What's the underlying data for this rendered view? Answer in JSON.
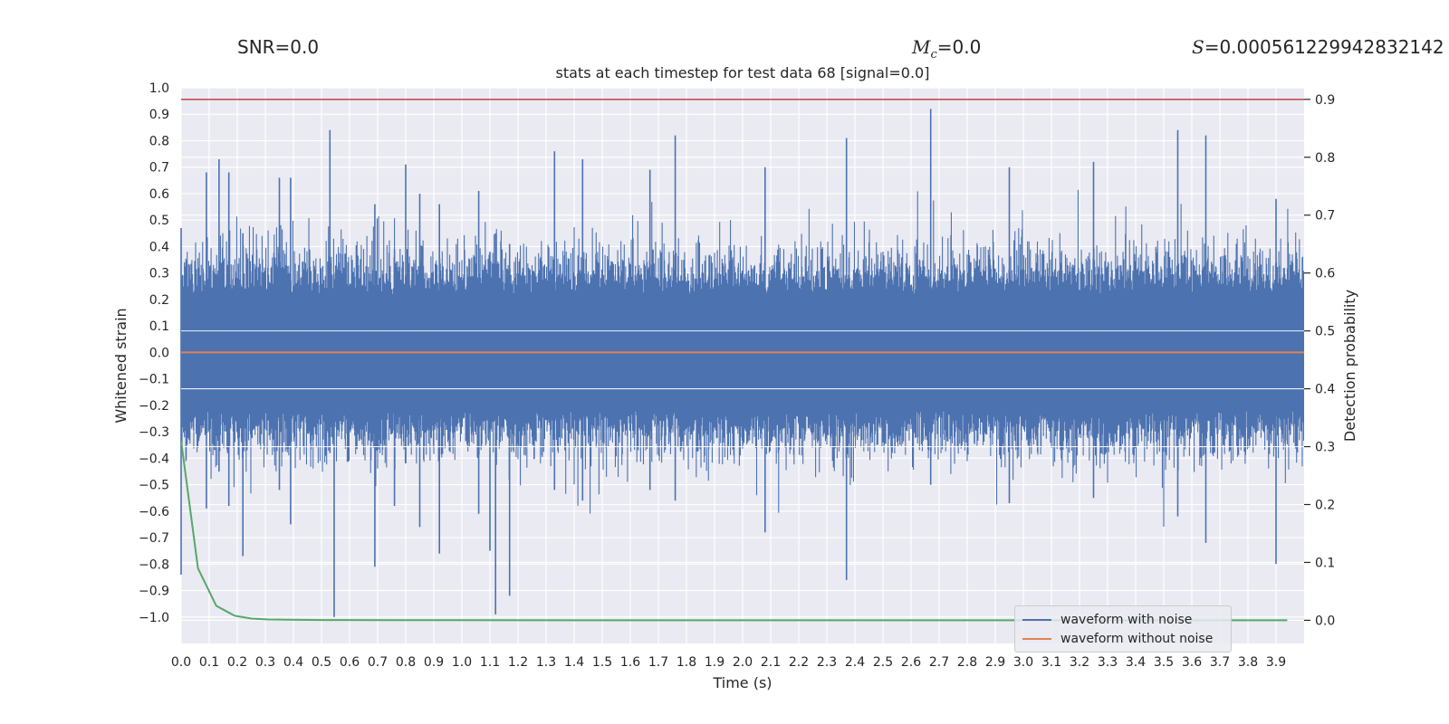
{
  "header": {
    "snr_text": "SNR=0.0",
    "mc_symbol": "M",
    "mc_sub": "c",
    "mc_value": "=0.0",
    "s_symbol": "S",
    "s_value": "=0.000561229942832142"
  },
  "chart_data": {
    "type": "line",
    "title": "stats at each timestep for test data 68 [signal=0.0]",
    "xlabel": "Time (s)",
    "ylabel": "Whitened strain",
    "y2label": "Detection probability",
    "xlim": [
      0.0,
      4.0
    ],
    "ylim": [
      -1.1,
      1.0
    ],
    "y2lim": [
      -0.04,
      0.92
    ],
    "xticks": [
      "0.0",
      "0.1",
      "0.2",
      "0.3",
      "0.4",
      "0.5",
      "0.6",
      "0.7",
      "0.8",
      "0.9",
      "1.0",
      "1.1",
      "1.2",
      "1.3",
      "1.4",
      "1.5",
      "1.6",
      "1.7",
      "1.8",
      "1.9",
      "2.0",
      "2.1",
      "2.2",
      "2.3",
      "2.4",
      "2.5",
      "2.6",
      "2.7",
      "2.8",
      "2.9",
      "3.0",
      "3.1",
      "3.2",
      "3.3",
      "3.4",
      "3.5",
      "3.6",
      "3.7",
      "3.8",
      "3.9"
    ],
    "yticks": [
      "1.0",
      "0.9",
      "0.8",
      "0.7",
      "0.6",
      "0.5",
      "0.4",
      "0.3",
      "0.2",
      "0.1",
      "0.0",
      "−0.1",
      "−0.2",
      "−0.3",
      "−0.4",
      "−0.5",
      "−0.6",
      "−0.7",
      "−0.8",
      "−0.9",
      "−1.0"
    ],
    "y2ticks": [
      "0.9",
      "0.8",
      "0.7",
      "0.6",
      "0.5",
      "0.4",
      "0.3",
      "0.2",
      "0.1",
      "0.0"
    ],
    "threshold": 0.9,
    "series": [
      {
        "name": "waveform with noise",
        "color": "#4c72b0",
        "note": "dense noise, envelope roughly ±0.5 with spikes to ±1.0"
      },
      {
        "name": "waveform without noise",
        "color": "#dd8452",
        "value": 0.0
      },
      {
        "name": "detection probability",
        "color": "#55a868",
        "x": [
          0.0,
          0.06,
          0.125,
          0.19,
          0.25,
          0.31,
          0.375,
          0.5,
          0.75,
          1.0,
          1.5,
          2.0,
          2.5,
          3.0,
          3.5,
          3.94
        ],
        "values": [
          0.31,
          0.09,
          0.025,
          0.008,
          0.003,
          0.0015,
          0.001,
          0.0005,
          0.0003,
          0.0002,
          0.0001,
          0.0001,
          0.0001,
          0.0001,
          0.0001,
          0.0001
        ]
      }
    ],
    "spikes": [
      {
        "x": 0.0,
        "hi": 0.47,
        "lo": -0.84
      },
      {
        "x": 0.09,
        "hi": 0.68,
        "lo": -0.59
      },
      {
        "x": 0.135,
        "hi": 0.73,
        "lo": -0.45
      },
      {
        "x": 0.17,
        "hi": 0.68,
        "lo": -0.58
      },
      {
        "x": 0.22,
        "hi": 0.45,
        "lo": -0.77
      },
      {
        "x": 0.35,
        "hi": 0.66,
        "lo": -0.52
      },
      {
        "x": 0.39,
        "hi": 0.66,
        "lo": -0.65
      },
      {
        "x": 0.53,
        "hi": 0.84,
        "lo": -0.38
      },
      {
        "x": 0.545,
        "hi": 0.2,
        "lo": -1.0
      },
      {
        "x": 0.69,
        "hi": 0.56,
        "lo": -0.81
      },
      {
        "x": 0.76,
        "hi": 0.39,
        "lo": -0.58
      },
      {
        "x": 0.8,
        "hi": 0.71,
        "lo": -0.42
      },
      {
        "x": 0.85,
        "hi": 0.6,
        "lo": -0.66
      },
      {
        "x": 0.92,
        "hi": 0.56,
        "lo": -0.76
      },
      {
        "x": 1.06,
        "hi": 0.61,
        "lo": -0.61
      },
      {
        "x": 1.1,
        "hi": 0.38,
        "lo": -0.75
      },
      {
        "x": 1.12,
        "hi": 0.45,
        "lo": -0.99
      },
      {
        "x": 1.17,
        "hi": 0.41,
        "lo": -0.92
      },
      {
        "x": 1.33,
        "hi": 0.76,
        "lo": -0.52
      },
      {
        "x": 1.43,
        "hi": 0.73,
        "lo": -0.56
      },
      {
        "x": 1.67,
        "hi": 0.69,
        "lo": -0.52
      },
      {
        "x": 1.76,
        "hi": 0.82,
        "lo": -0.56
      },
      {
        "x": 2.08,
        "hi": 0.7,
        "lo": -0.68
      },
      {
        "x": 2.37,
        "hi": 0.81,
        "lo": -0.86
      },
      {
        "x": 2.67,
        "hi": 0.92,
        "lo": -0.5
      },
      {
        "x": 2.95,
        "hi": 0.7,
        "lo": -0.57
      },
      {
        "x": 3.25,
        "hi": 0.72,
        "lo": -0.55
      },
      {
        "x": 3.55,
        "hi": 0.84,
        "lo": -0.62
      },
      {
        "x": 3.65,
        "hi": 0.82,
        "lo": -0.72
      },
      {
        "x": 3.9,
        "hi": 0.58,
        "lo": -0.8
      }
    ]
  }
}
